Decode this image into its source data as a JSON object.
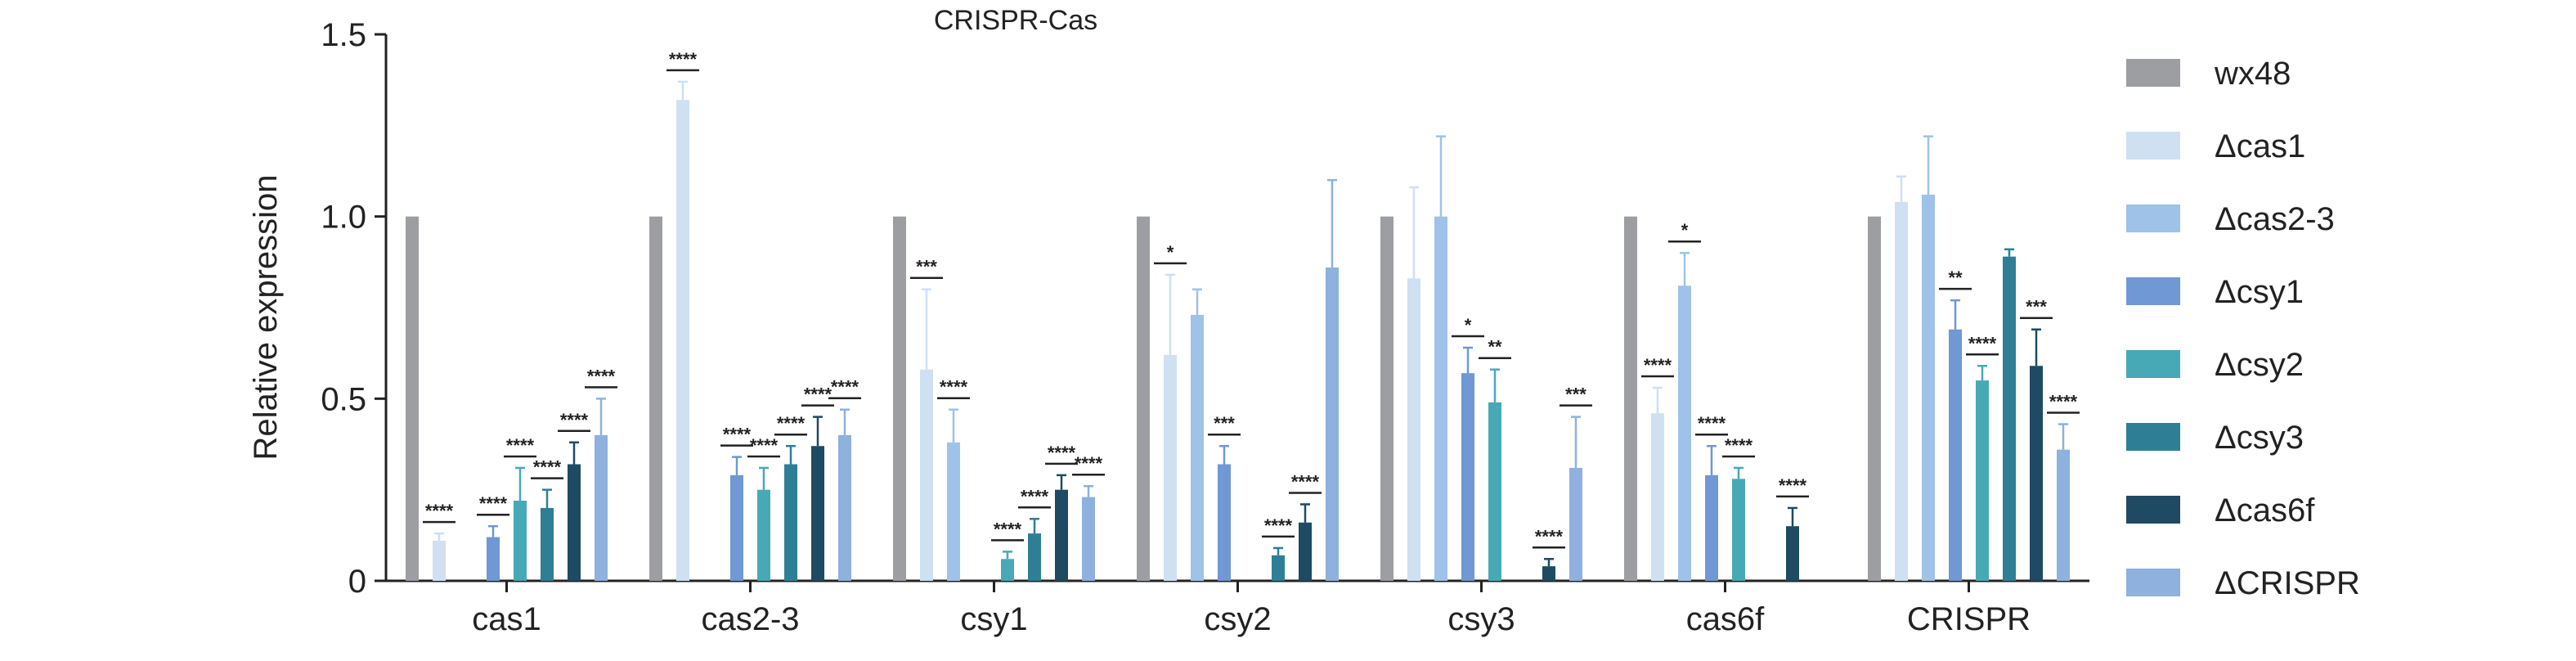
{
  "chart_data": {
    "type": "bar",
    "title": "CRISPR-Cas",
    "xlabel": "",
    "ylabel": "Relative expression",
    "ylim": [
      0,
      1.5
    ],
    "yticks": [
      "0",
      "0.5",
      "1.0",
      "1.5"
    ],
    "ytick_values": [
      0,
      0.5,
      1.0,
      1.5
    ],
    "categories": [
      "cas1",
      "cas2-3",
      "csy1",
      "csy2",
      "csy3",
      "cas6f",
      "CRISPR"
    ],
    "legend_position": "right",
    "grid": false,
    "series": [
      {
        "name": "wx48",
        "color": "#9d9ea2",
        "values": [
          1.0,
          1.0,
          1.0,
          1.0,
          1.0,
          1.0,
          1.0
        ],
        "errors": [
          0,
          0,
          0,
          0,
          0,
          0,
          0
        ],
        "sig": [
          "",
          "",
          "",
          "",
          "",
          "",
          ""
        ]
      },
      {
        "name": "Δcas1",
        "color": "#cfe0f3",
        "values": [
          0.11,
          1.32,
          0.58,
          0.62,
          0.83,
          0.46,
          1.04
        ],
        "errors": [
          0.02,
          0.05,
          0.22,
          0.22,
          0.25,
          0.07,
          0.07
        ],
        "sig": [
          "****",
          "****",
          "***",
          "*",
          "",
          "****",
          ""
        ]
      },
      {
        "name": "Δcas2-3",
        "color": "#9fc2e8",
        "values": [
          0,
          0,
          0.38,
          0.73,
          1.0,
          0.81,
          1.06
        ],
        "errors": [
          0,
          0,
          0.09,
          0.07,
          0.22,
          0.09,
          0.16
        ],
        "sig": [
          "",
          "",
          "****",
          "",
          "",
          "*",
          ""
        ]
      },
      {
        "name": "Δcsy1",
        "color": "#6f98d4",
        "values": [
          0.12,
          0.29,
          0,
          0.32,
          0.57,
          0.29,
          0.69
        ],
        "errors": [
          0.03,
          0.05,
          0,
          0.05,
          0.07,
          0.08,
          0.08
        ],
        "sig": [
          "****",
          "****",
          "",
          "***",
          "*",
          "****",
          "**"
        ]
      },
      {
        "name": "Δcsy2",
        "color": "#48a9b6",
        "values": [
          0.22,
          0.25,
          0.06,
          0,
          0.49,
          0.28,
          0.55
        ],
        "errors": [
          0.09,
          0.06,
          0.02,
          0,
          0.09,
          0.03,
          0.04
        ],
        "sig": [
          "****",
          "****",
          "****",
          "",
          "**",
          "****",
          "****"
        ]
      },
      {
        "name": "Δcsy3",
        "color": "#2e7f96",
        "values": [
          0.2,
          0.32,
          0.13,
          0.07,
          0,
          0,
          0.89
        ],
        "errors": [
          0.05,
          0.05,
          0.04,
          0.02,
          0,
          0,
          0.02
        ],
        "sig": [
          "****",
          "****",
          "****",
          "****",
          "",
          "",
          ""
        ]
      },
      {
        "name": "Δcas6f",
        "color": "#1e4a63",
        "values": [
          0.32,
          0.37,
          0.25,
          0.16,
          0.04,
          0.15,
          0.59
        ],
        "errors": [
          0.06,
          0.08,
          0.04,
          0.05,
          0.02,
          0.05,
          0.1
        ],
        "sig": [
          "****",
          "****",
          "****",
          "****",
          "****",
          "****",
          "***"
        ]
      },
      {
        "name": "ΔCRISPR",
        "color": "#8eb1de",
        "values": [
          0.4,
          0.4,
          0.23,
          0.86,
          0.31,
          0,
          0.36
        ],
        "errors": [
          0.1,
          0.07,
          0.03,
          0.24,
          0.14,
          0,
          0.07
        ],
        "sig": [
          "****",
          "****",
          "****",
          "",
          "***",
          "",
          "****"
        ]
      }
    ]
  }
}
